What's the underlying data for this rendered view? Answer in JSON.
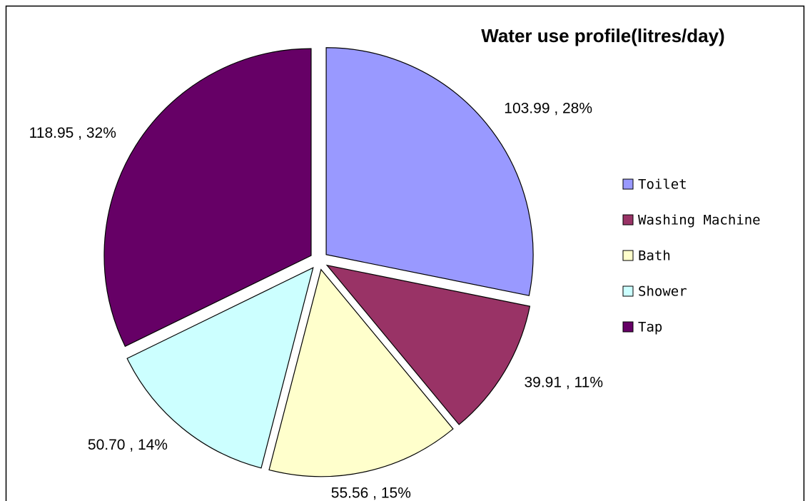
{
  "chart_data": {
    "type": "pie",
    "title": "Water use profile(litres/day)",
    "categories": [
      "Toilet",
      "Washing Machine",
      "Bath",
      "Shower",
      "Tap"
    ],
    "values": [
      103.99,
      39.91,
      55.56,
      50.7,
      118.95
    ],
    "value_labels": [
      "103.99 , 28%",
      "39.91 , 11%",
      "55.56 , 15%",
      "50.70 , 14%",
      "118.95 , 32%"
    ],
    "colors": [
      "#9999ff",
      "#993366",
      "#ffffcc",
      "#ccffff",
      "#660066"
    ],
    "legend": "right"
  }
}
